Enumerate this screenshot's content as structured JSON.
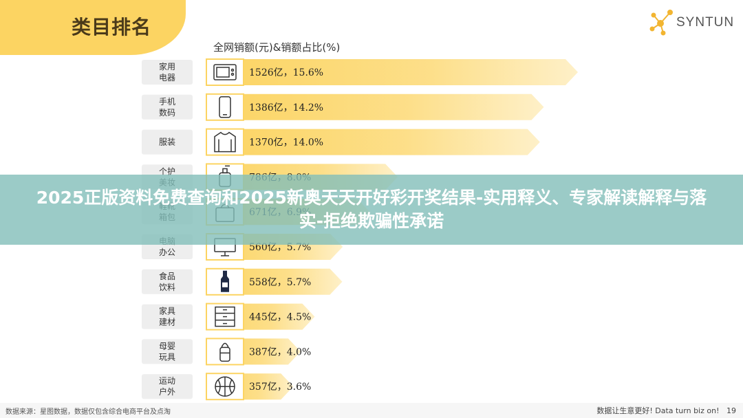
{
  "header": {
    "title": "类目排名"
  },
  "logo": {
    "text": "SYNTUN"
  },
  "banner": {
    "text": "2025正版资料免费查询和2025新奥天天开好彩开奖结果-实用释义、专家解读解释与落实-拒绝欺骗性承诺"
  },
  "footer": {
    "source": "数据来源：星图数据，数据仅包含综合电商平台及点淘",
    "slogan": "数据让生意更好! Data turn biz on!",
    "page": "19"
  },
  "colors": {
    "bar": "#fcd462",
    "accent": "#fcd462",
    "label_bg": "#eeeeee"
  },
  "chart_data": {
    "type": "bar",
    "orientation": "horizontal",
    "title": "全网销额(元)&销额占比(%)",
    "unit": "亿",
    "categories": [
      {
        "name": "家用电器",
        "lines": [
          "家用",
          "电器"
        ],
        "icon": "microwave-icon"
      },
      {
        "name": "手机数码",
        "lines": [
          "手机",
          "数码"
        ],
        "icon": "phone-icon"
      },
      {
        "name": "服装",
        "lines": [
          "服装"
        ],
        "icon": "sweater-icon"
      },
      {
        "name": "个护美妆",
        "lines": [
          "个护",
          "美妆"
        ],
        "icon": "lotion-bottle-icon"
      },
      {
        "name": "鞋靴箱包",
        "lines": [
          "鞋靴",
          "箱包"
        ],
        "icon": "bag-icon"
      },
      {
        "name": "电脑办公",
        "lines": [
          "电脑",
          "办公"
        ],
        "icon": "monitor-icon"
      },
      {
        "name": "食品饮料",
        "lines": [
          "食品",
          "饮料"
        ],
        "icon": "drink-bottle-icon"
      },
      {
        "name": "家具建材",
        "lines": [
          "家具",
          "建材"
        ],
        "icon": "cabinet-icon"
      },
      {
        "name": "母婴玩具",
        "lines": [
          "母婴",
          "玩具"
        ],
        "icon": "baby-bottle-icon"
      },
      {
        "name": "运动户外",
        "lines": [
          "运动",
          "户外"
        ],
        "icon": "ball-icon"
      }
    ],
    "values": [
      1526,
      1386,
      1370,
      786,
      671,
      560,
      558,
      445,
      387,
      357
    ],
    "shares": [
      15.6,
      14.2,
      14.0,
      8.0,
      6.9,
      5.7,
      5.7,
      4.5,
      4.0,
      3.6
    ],
    "labels": [
      "1526亿，15.6%",
      "1386亿，14.2%",
      "1370亿，14.0%",
      "786亿，8.0%",
      "671亿，6.9%",
      "560亿，5.7%",
      "558亿，5.7%",
      "445亿，4.5%",
      "387亿，4.0%",
      "357亿，3.6%"
    ],
    "xlim": [
      0,
      1526
    ],
    "grid": false,
    "legend": "none"
  }
}
